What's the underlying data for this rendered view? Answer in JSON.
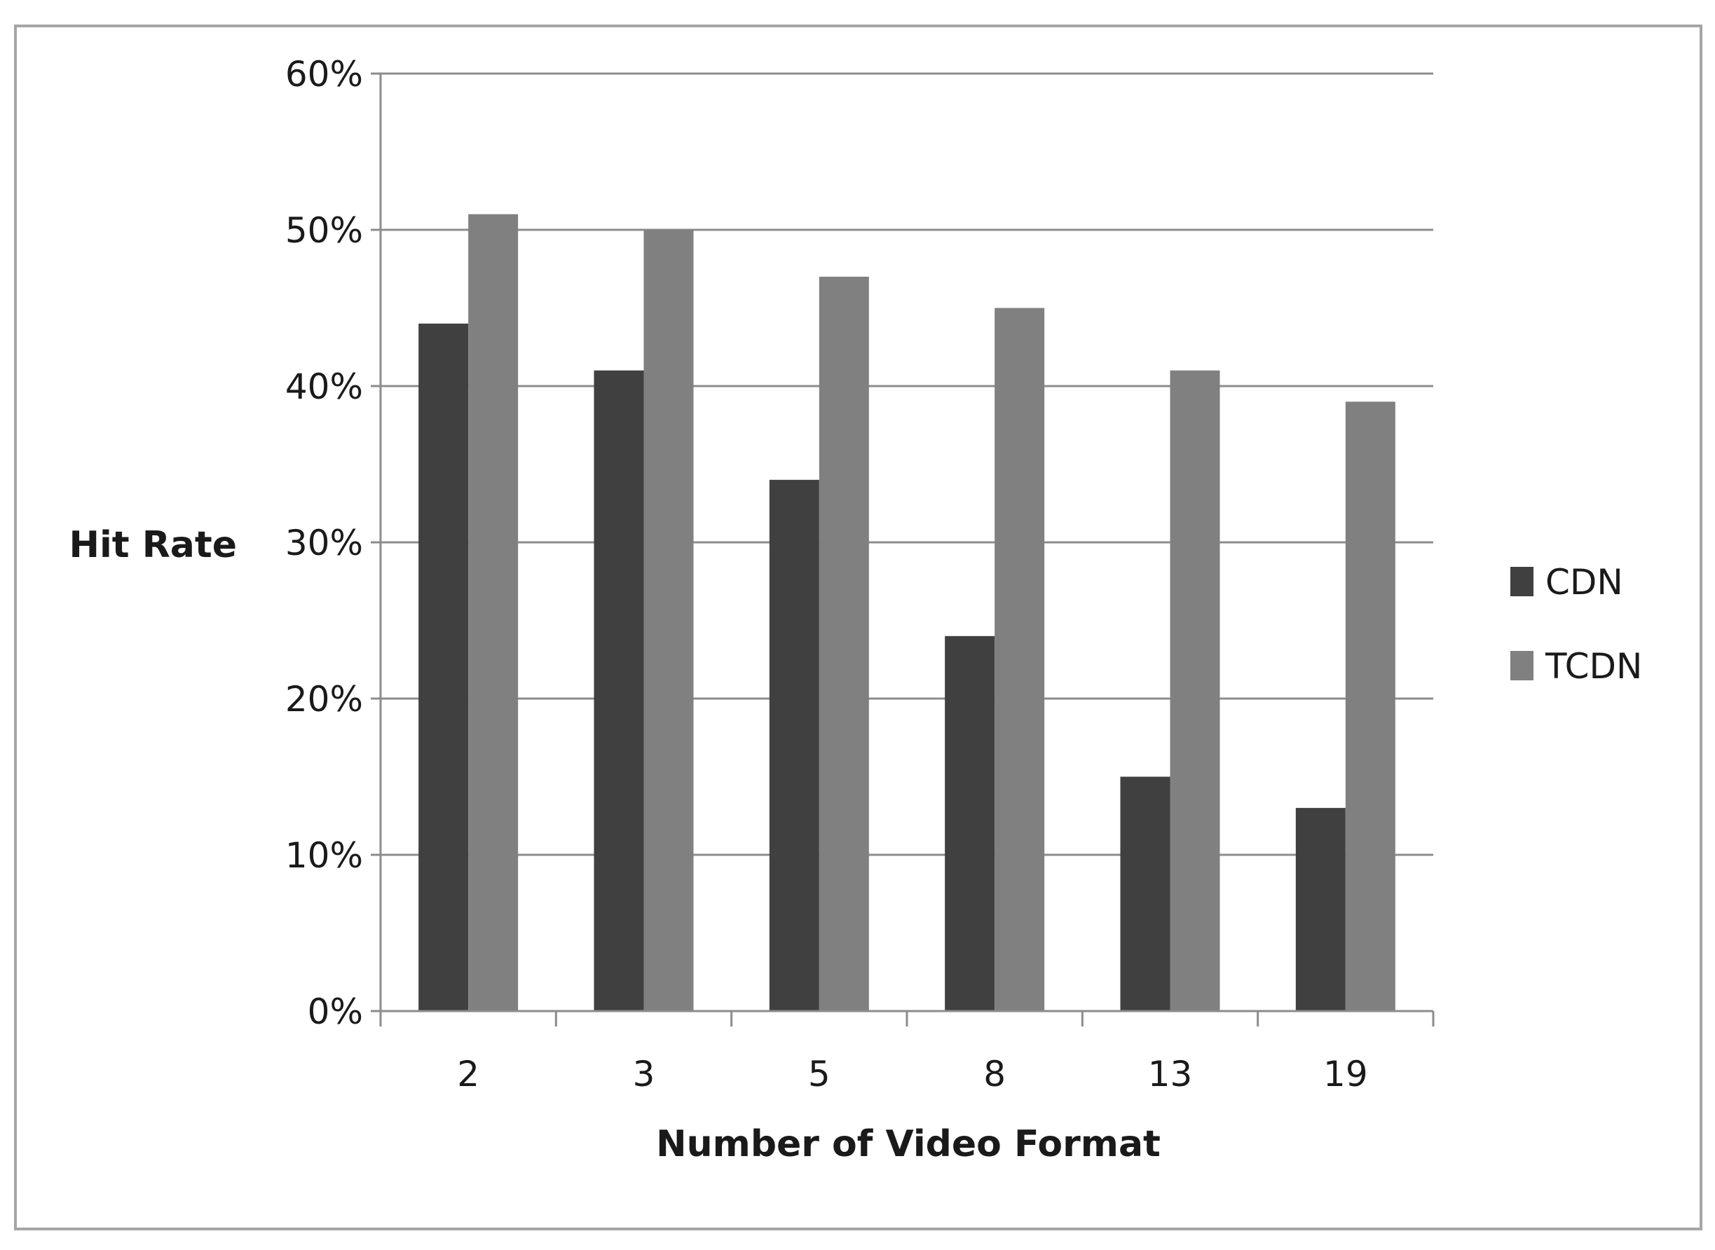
{
  "chart_data": {
    "type": "bar",
    "title": "",
    "xlabel": "Number of Video Format",
    "ylabel": "Hit Rate",
    "categories": [
      "2",
      "3",
      "5",
      "8",
      "13",
      "19"
    ],
    "series": [
      {
        "name": "CDN",
        "color": "#404040",
        "values": [
          44,
          41,
          34,
          24,
          15,
          13
        ]
      },
      {
        "name": "TCDN",
        "color": "#808080",
        "values": [
          51,
          50,
          47,
          45,
          41,
          39
        ]
      }
    ],
    "ylim": [
      0,
      60
    ],
    "yticks": [
      0,
      10,
      20,
      30,
      40,
      50,
      60
    ],
    "ytick_labels": [
      "0%",
      "10%",
      "20%",
      "30%",
      "40%",
      "50%",
      "60%"
    ],
    "grid": true,
    "legend_position": "right"
  }
}
